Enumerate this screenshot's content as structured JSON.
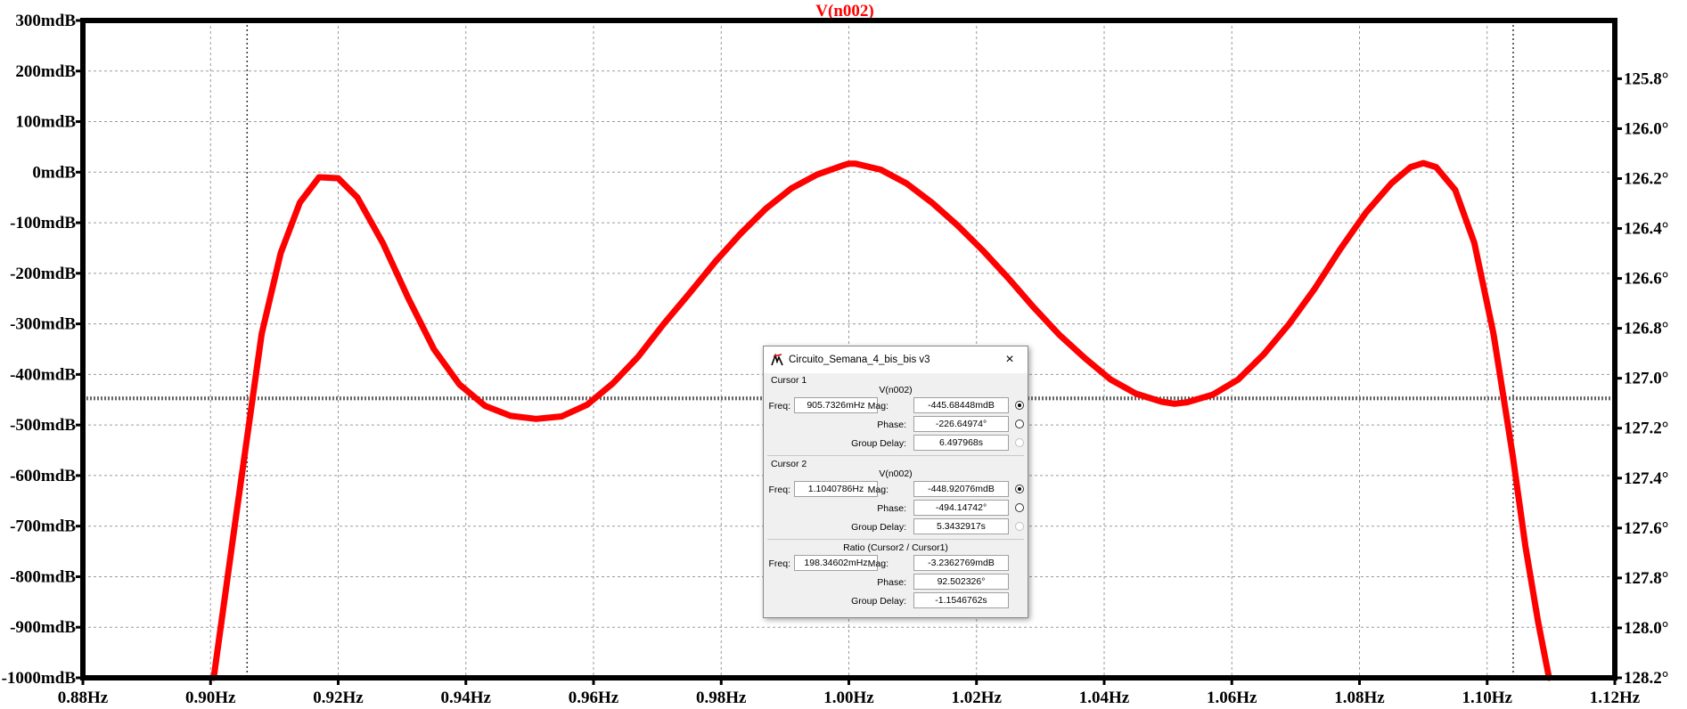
{
  "chart_data": {
    "type": "line",
    "title": "V(n002)",
    "xlabel": "",
    "ylabel": "",
    "x_ticks": [
      "0.88Hz",
      "0.90Hz",
      "0.92Hz",
      "0.94Hz",
      "0.96Hz",
      "0.98Hz",
      "1.00Hz",
      "1.02Hz",
      "1.04Hz",
      "1.06Hz",
      "1.08Hz",
      "1.10Hz",
      "1.12Hz"
    ],
    "x_tick_values": [
      0.88,
      0.9,
      0.92,
      0.94,
      0.96,
      0.98,
      1.0,
      1.02,
      1.04,
      1.06,
      1.08,
      1.1,
      1.12
    ],
    "xlim": [
      0.88,
      1.12
    ],
    "y_ticks": [
      "300mdB",
      "200mdB",
      "100mdB",
      "0mdB",
      "-100mdB",
      "-200mdB",
      "-300mdB",
      "-400mdB",
      "-500mdB",
      "-600mdB",
      "-700mdB",
      "-800mdB",
      "-900mdB",
      "-1000mdB"
    ],
    "y_tick_values": [
      300,
      200,
      100,
      0,
      -100,
      -200,
      -300,
      -400,
      -500,
      -600,
      -700,
      -800,
      -900,
      -1000
    ],
    "ylim": [
      -1000,
      300
    ],
    "y2_ticks": [
      "125.8°",
      "126.0°",
      "126.2°",
      "126.4°",
      "126.6°",
      "126.8°",
      "127.0°",
      "127.2°",
      "127.4°",
      "127.6°",
      "127.8°",
      "128.0°",
      "128.2°"
    ],
    "y2_tick_values": [
      125.8,
      126.0,
      126.2,
      126.4,
      126.6,
      126.8,
      127.0,
      127.2,
      127.4,
      127.6,
      127.8,
      128.0,
      128.2
    ],
    "y2lim": [
      125.5667,
      128.2
    ],
    "grid": true,
    "series": [
      {
        "name": "V(n002)",
        "color": "#ff0000",
        "x": [
          0.9005,
          0.904,
          0.908,
          0.911,
          0.914,
          0.917,
          0.92,
          0.923,
          0.927,
          0.931,
          0.935,
          0.939,
          0.943,
          0.947,
          0.951,
          0.955,
          0.959,
          0.963,
          0.967,
          0.971,
          0.975,
          0.979,
          0.983,
          0.987,
          0.991,
          0.995,
          0.999,
          1.0,
          1.001,
          1.005,
          1.009,
          1.013,
          1.017,
          1.021,
          1.025,
          1.029,
          1.033,
          1.037,
          1.041,
          1.045,
          1.049,
          1.051,
          1.053,
          1.057,
          1.061,
          1.065,
          1.069,
          1.073,
          1.077,
          1.081,
          1.085,
          1.088,
          1.09,
          1.092,
          1.095,
          1.098,
          1.101,
          1.104,
          1.106,
          1.108,
          1.1097
        ],
        "y": [
          -1000,
          -680,
          -320,
          -160,
          -60,
          -10,
          -12,
          -50,
          -140,
          -250,
          -350,
          -420,
          -462,
          -482,
          -488,
          -483,
          -460,
          -418,
          -365,
          -300,
          -240,
          -178,
          -122,
          -72,
          -32,
          -5,
          13,
          17,
          17,
          5,
          -22,
          -60,
          -105,
          -155,
          -210,
          -268,
          -322,
          -368,
          -410,
          -438,
          -454,
          -458,
          -455,
          -440,
          -410,
          -360,
          -300,
          -230,
          -152,
          -80,
          -22,
          10,
          18,
          10,
          -35,
          -140,
          -320,
          -560,
          -740,
          -890,
          -1000
        ]
      }
    ],
    "cursors": [
      {
        "name": "Cursor 1",
        "x": 0.9057326,
        "y": -445.68448
      },
      {
        "name": "Cursor 2",
        "x": 1.1040786,
        "y": -448.92076
      }
    ],
    "legend": "top-center"
  },
  "dialog": {
    "title": "Circuito_Semana_4_bis_bis v3",
    "close": "×",
    "cursor1": {
      "label": "Cursor 1",
      "trace": "V(n002)",
      "freq_label": "Freq:",
      "freq": "905.7326mHz",
      "mag_label": "Mag:",
      "mag": "-445.68448mdB",
      "phase_label": "Phase:",
      "phase": "-226.64974°",
      "gd_label": "Group Delay:",
      "gd": "6.497968s"
    },
    "cursor2": {
      "label": "Cursor 2",
      "trace": "V(n002)",
      "freq_label": "Freq:",
      "freq": "1.1040786Hz",
      "mag_label": "Mag:",
      "mag": "-448.92076mdB",
      "phase_label": "Phase:",
      "phase": "-494.14742°",
      "gd_label": "Group Delay:",
      "gd": "5.3432917s"
    },
    "ratio": {
      "label": "Ratio (Cursor2 / Cursor1)",
      "freq_label": "Freq:",
      "freq": "198.34602mHz",
      "mag_label": "Mag:",
      "mag": "-3.2362769mdB",
      "phase_label": "Phase:",
      "phase": "92.502326°",
      "gd_label": "Group Delay:",
      "gd": "-1.1546762s"
    }
  }
}
